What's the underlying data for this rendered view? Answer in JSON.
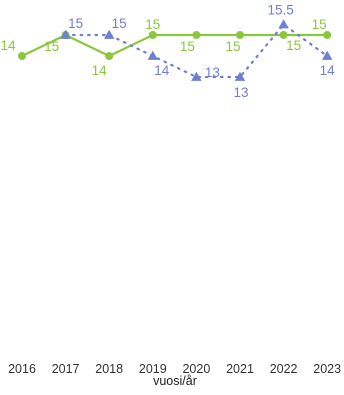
{
  "chart_data": {
    "type": "line",
    "title": "",
    "xlabel": "vuosi/år",
    "ylabel": "",
    "x": [
      2016,
      2017,
      2018,
      2019,
      2020,
      2021,
      2022,
      2023
    ],
    "x_tick_labels": [
      "2016",
      "2017",
      "2018",
      "2019",
      "2020",
      "2021",
      "2022",
      "2023"
    ],
    "ylim": [
      0,
      16
    ],
    "grid": false,
    "legend": "none",
    "series": [
      {
        "style": "solid line, circle markers",
        "color": "#8cc63f",
        "values": [
          14,
          15,
          14,
          15,
          15,
          15,
          15,
          15
        ],
        "labels": [
          "14",
          "15",
          "14",
          "15",
          "15",
          "15",
          "15",
          "15"
        ]
      },
      {
        "style": "dotted line, triangle markers",
        "color": "#6f7fd0",
        "values": [
          null,
          15,
          15,
          14,
          13,
          13,
          15.5,
          14
        ],
        "labels": [
          "",
          "15",
          "15",
          "14",
          "13",
          "13",
          "15.5",
          "14"
        ]
      }
    ]
  }
}
